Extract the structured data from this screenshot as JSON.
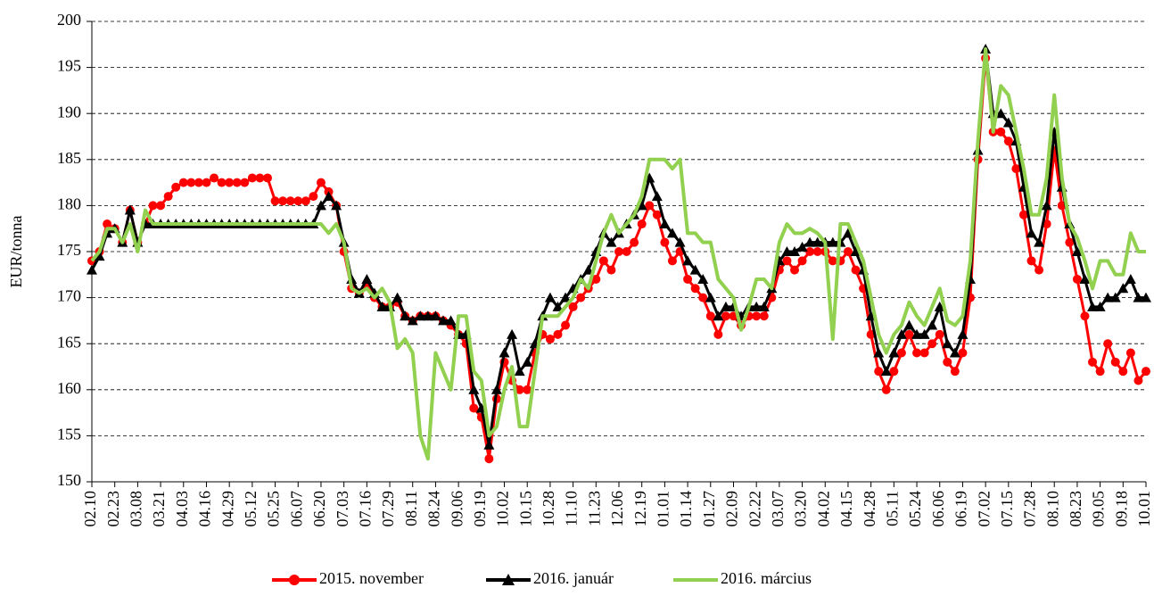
{
  "chart_data": {
    "type": "line",
    "y_label": "EUR/tonna",
    "ylim": [
      150,
      200
    ],
    "yticks": [
      150,
      155,
      160,
      165,
      170,
      175,
      180,
      185,
      190,
      195,
      200
    ],
    "grid": true,
    "legend": "bottom",
    "categories": [
      "02.10",
      null,
      null,
      "02.23",
      null,
      null,
      "03.08",
      null,
      null,
      "03.21",
      null,
      null,
      "04.03",
      null,
      null,
      "04.16",
      null,
      null,
      "04.29",
      null,
      null,
      "05.12",
      null,
      null,
      "05.25",
      null,
      null,
      "06.07",
      null,
      null,
      "06.20",
      null,
      null,
      "07.03",
      null,
      null,
      "07.16",
      null,
      null,
      "07.29",
      null,
      null,
      "08.11",
      null,
      null,
      "08.24",
      null,
      null,
      "09.06",
      null,
      null,
      "09.19",
      null,
      null,
      "10.02",
      null,
      null,
      "10.15",
      null,
      null,
      "10.28",
      null,
      null,
      "11.10",
      null,
      null,
      "11.23",
      null,
      null,
      "12.06",
      null,
      null,
      "12.19",
      null,
      null,
      "01.01",
      null,
      null,
      "01.14",
      null,
      null,
      "01.27",
      null,
      null,
      "02.09",
      null,
      null,
      "02.22",
      null,
      null,
      "03.07",
      null,
      null,
      "03.20",
      null,
      null,
      "04.02",
      null,
      null,
      "04.15",
      null,
      null,
      "04.28",
      null,
      null,
      "05.11",
      null,
      null,
      "05.24",
      null,
      null,
      "06.06",
      null,
      null,
      "06.19",
      null,
      null,
      "07.02",
      null,
      null,
      "07.15",
      null,
      null,
      "07.28",
      null,
      null,
      "08.10",
      null,
      null,
      "08.23",
      null,
      null,
      "09.05",
      null,
      null,
      "09.18",
      null,
      null,
      "10.01"
    ],
    "series": [
      {
        "name": "2015. november",
        "color": "#ff0000",
        "marker": "circle",
        "values": [
          174,
          175,
          178,
          177.5,
          176,
          179.5,
          176,
          178,
          180,
          180,
          181,
          182,
          182.5,
          182.5,
          182.5,
          182.5,
          183,
          182.5,
          182.5,
          182.5,
          182.5,
          183,
          183,
          183,
          180.5,
          180.5,
          180.5,
          180.5,
          180.5,
          181,
          182.5,
          181.5,
          180,
          175,
          171,
          170.5,
          171.5,
          170,
          169,
          169,
          169.5,
          168,
          167.5,
          168,
          168,
          168,
          167.5,
          167,
          166,
          165,
          158,
          157,
          152.5,
          159,
          163,
          161,
          160,
          160,
          164,
          166,
          165.5,
          166,
          167,
          169,
          170,
          171,
          172,
          174,
          173,
          175,
          175,
          176,
          178,
          180,
          179,
          176,
          174,
          175,
          172,
          171,
          170,
          168,
          166,
          168,
          168,
          167,
          168,
          168,
          168,
          170,
          173,
          174,
          173,
          174,
          175,
          175,
          175,
          174,
          174,
          175,
          173,
          171,
          166,
          162,
          160,
          162,
          164,
          166,
          164,
          164,
          165,
          166,
          163,
          162,
          164,
          170,
          185,
          196,
          188,
          188,
          187,
          184,
          179,
          174,
          173,
          178,
          186,
          180,
          176,
          172,
          168,
          163,
          162,
          165,
          163,
          162,
          164,
          161,
          162
        ]
      },
      {
        "name": "2016. január",
        "color": "#000000",
        "marker": "triangle",
        "values": [
          173,
          174.5,
          177,
          177.5,
          176,
          179.5,
          176,
          178,
          178,
          178,
          178,
          178,
          178,
          178,
          178,
          178,
          178,
          178,
          178,
          178,
          178,
          178,
          178,
          178,
          178,
          178,
          178,
          178,
          178,
          178,
          180,
          181,
          180,
          176,
          172,
          170.5,
          172,
          170.5,
          169,
          169,
          170,
          168,
          167.5,
          168,
          168,
          168,
          167.5,
          167.5,
          166,
          166,
          160,
          158,
          154,
          160,
          164,
          166,
          162,
          163,
          165,
          168,
          170,
          169,
          170,
          171,
          172,
          173,
          175,
          177,
          176,
          177,
          178,
          179,
          180,
          183,
          181,
          178,
          177,
          176,
          174,
          173,
          172,
          170,
          168,
          169,
          169,
          168,
          169,
          169,
          169,
          171,
          174,
          175,
          175,
          175.5,
          176,
          176,
          176,
          176,
          176,
          177,
          175,
          173,
          168,
          164,
          162,
          164,
          166,
          167,
          166,
          166,
          167,
          169,
          165,
          164,
          166,
          172,
          186,
          197,
          190,
          190,
          189,
          187,
          182,
          177,
          176,
          180,
          188,
          182,
          178,
          175,
          172,
          169,
          169,
          170,
          170,
          171,
          172,
          170,
          170
        ]
      },
      {
        "name": "2016. március",
        "color": "#92d050",
        "marker": "none",
        "values": [
          174,
          175,
          177.5,
          177.5,
          176,
          178,
          175,
          179.5,
          178,
          178,
          178,
          178,
          178,
          178,
          178,
          178,
          178,
          178,
          178,
          178,
          178,
          178,
          178,
          178,
          178,
          178,
          178,
          178,
          178,
          178,
          178,
          177,
          178,
          176,
          171,
          170.5,
          171,
          170,
          171,
          169.5,
          164.5,
          165.5,
          164,
          155,
          152.5,
          164,
          162,
          160,
          168,
          168,
          162,
          161,
          155,
          156,
          160,
          162.5,
          156,
          156,
          162,
          168,
          168,
          168,
          169,
          170,
          172,
          171,
          174,
          177,
          179,
          177,
          178,
          179,
          181,
          185,
          185,
          185,
          184,
          185,
          177,
          177,
          176,
          176,
          172,
          171,
          170,
          166.5,
          169,
          172,
          172,
          171,
          176,
          178,
          177,
          177,
          177.5,
          177,
          176,
          165.5,
          178,
          178,
          176,
          174,
          170,
          166,
          164,
          166,
          167,
          169.5,
          168,
          167,
          169,
          171,
          167.5,
          167,
          168,
          174,
          187,
          197,
          188,
          193,
          192,
          188,
          184,
          179,
          179,
          183,
          192,
          183,
          178,
          176.5,
          174,
          171,
          174,
          174,
          172.5,
          172.5,
          177,
          175,
          175
        ]
      }
    ]
  }
}
